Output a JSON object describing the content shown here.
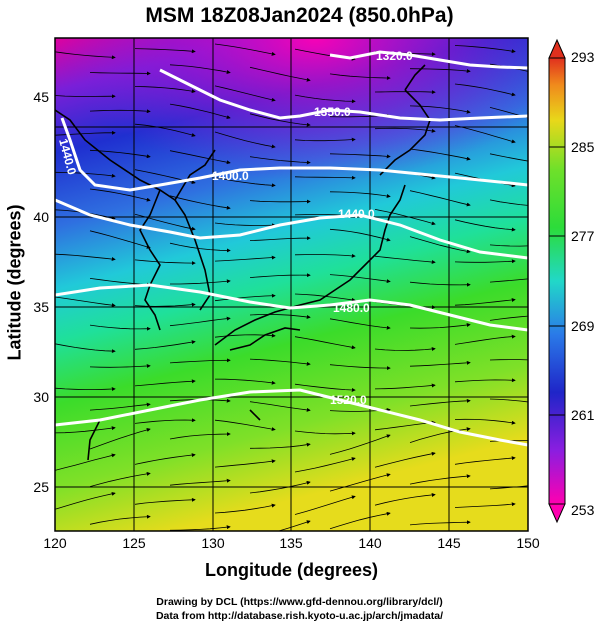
{
  "title": "MSM 18Z08Jan2024 (850.0hPa)",
  "xlabel": "Longitude (degrees)",
  "ylabel": "Latitude  (degrees)",
  "x_ticks": [
    "120",
    "125",
    "130",
    "135",
    "140",
    "145",
    "150"
  ],
  "y_ticks": [
    "25",
    "30",
    "35",
    "40",
    "45"
  ],
  "colorbar_ticks": [
    "253",
    "261",
    "269",
    "277",
    "285",
    "293"
  ],
  "contours": [
    {
      "label": "1320.0"
    },
    {
      "label": "1350.0"
    },
    {
      "label": "1400.0"
    },
    {
      "label": "1440.0"
    },
    {
      "label": "1440.0"
    },
    {
      "label": "1480.0"
    },
    {
      "label": "1520.0"
    }
  ],
  "credit_line1": "Drawing by DCL (https://www.gfd-dennou.org/library/dcl/)",
  "credit_line2": "Data from http://database.rish.kyoto-u.ac.jp/arch/jmadata/",
  "colors": {
    "cold": "#d400c8",
    "cool": "#2a3bd6",
    "mid": "#22d6c8",
    "warm": "#3ed12a",
    "hot": "#f4d21a",
    "hottest": "#e23a1e"
  }
}
